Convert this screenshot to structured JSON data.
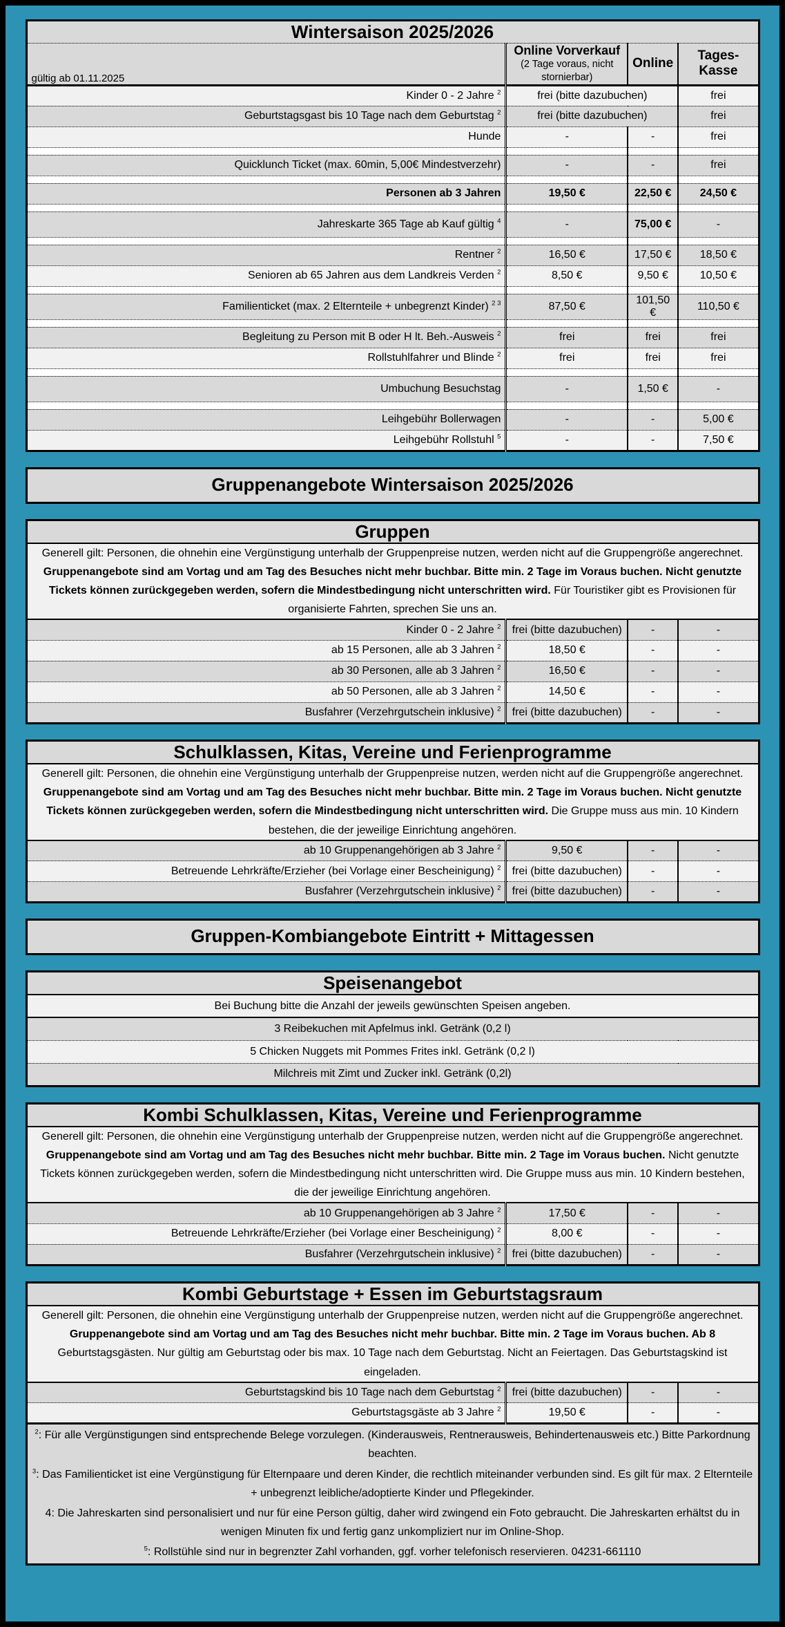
{
  "page": {
    "background_color": "#2d93b4",
    "row_dark_color": "#d9d9d9",
    "row_light_color": "#f1f1f1"
  },
  "sections": [
    {
      "type": "price_table",
      "name": "wintersaison",
      "title": "Wintersaison 2025/2026",
      "corner_note": "gültig ab 01.11.2025",
      "headers": {
        "vorverkauf_title": "Online Vorverkauf",
        "vorverkauf_sub": "(2 Tage voraus, nicht stornierbar)",
        "online": "Online",
        "kasse": "Tages-Kasse"
      },
      "rows": [
        {
          "label": "Kinder 0 - 2 Jahre",
          "sup": "2",
          "shade": "light",
          "cells": [
            {
              "text": "frei (bitte dazubuchen)",
              "span": 2
            },
            {
              "text": "frei"
            }
          ]
        },
        {
          "label": "Geburtstagsgast bis 10 Tage nach dem Geburtstag",
          "sup": "2",
          "shade": "dark",
          "cells": [
            {
              "text": "frei (bitte dazubuchen)",
              "span": 2
            },
            {
              "text": "frei"
            }
          ]
        },
        {
          "label": "Hunde",
          "shade": "light",
          "cells": [
            {
              "text": "-"
            },
            {
              "text": "-"
            },
            {
              "text": "frei"
            }
          ]
        },
        {
          "spacer": true
        },
        {
          "label": "Quicklunch Ticket (max. 60min, 5,00€ Mindestverzehr)",
          "shade": "dark",
          "cells": [
            {
              "text": "-"
            },
            {
              "text": "-"
            },
            {
              "text": "frei"
            }
          ]
        },
        {
          "spacer": true
        },
        {
          "label": "Personen ab 3 Jahren",
          "label_bold": true,
          "shade": "dark",
          "cells": [
            {
              "text": "19,50 €",
              "bold": true
            },
            {
              "text": "22,50 €",
              "bold": true
            },
            {
              "text": "24,50 €",
              "bold": true
            }
          ]
        },
        {
          "spacer": true
        },
        {
          "label": "Jahreskarte 365 Tage ab Kauf gültig",
          "sup": "4",
          "tall": true,
          "shade": "dark",
          "cells": [
            {
              "text": "-"
            },
            {
              "text": "75,00 €",
              "bold": true
            },
            {
              "text": "-"
            }
          ]
        },
        {
          "spacer": true
        },
        {
          "label": "Rentner",
          "sup": "2",
          "shade": "dark",
          "cells": [
            {
              "text": "16,50 €"
            },
            {
              "text": "17,50 €"
            },
            {
              "text": "18,50 €"
            }
          ]
        },
        {
          "label": "Senioren ab 65 Jahren aus dem Landkreis Verden",
          "sup": "2",
          "shade": "light",
          "cells": [
            {
              "text": "8,50 €"
            },
            {
              "text": "9,50 €"
            },
            {
              "text": "10,50 €"
            }
          ]
        },
        {
          "spacer": true
        },
        {
          "label": "Familienticket (max. 2 Elternteile + unbegrenzt Kinder)",
          "sup": "2 3",
          "tall": true,
          "shade": "dark",
          "cells": [
            {
              "text": "87,50 €"
            },
            {
              "text": "101,50 €"
            },
            {
              "text": "110,50 €"
            }
          ]
        },
        {
          "spacer": true
        },
        {
          "label": "Begleitung zu Person mit B oder H lt. Beh.-Ausweis",
          "sup": "2",
          "shade": "dark",
          "cells": [
            {
              "text": "frei"
            },
            {
              "text": "frei"
            },
            {
              "text": "frei"
            }
          ]
        },
        {
          "label": "Rollstuhlfahrer und Blinde",
          "sup": "2",
          "shade": "light",
          "cells": [
            {
              "text": "frei"
            },
            {
              "text": "frei"
            },
            {
              "text": "frei"
            }
          ]
        },
        {
          "spacer": true
        },
        {
          "label": "Umbuchung Besuchstag",
          "tall": true,
          "shade": "dark",
          "cells": [
            {
              "text": "-"
            },
            {
              "text": "1,50 €"
            },
            {
              "text": "-"
            }
          ]
        },
        {
          "spacer": true
        },
        {
          "label": "Leihgebühr Bollerwagen",
          "shade": "dark",
          "cells": [
            {
              "text": "-"
            },
            {
              "text": "-"
            },
            {
              "text": "5,00 €"
            }
          ]
        },
        {
          "label": "Leihgebühr Rollstuhl",
          "sup": "5",
          "shade": "light",
          "cells": [
            {
              "text": "-"
            },
            {
              "text": "-"
            },
            {
              "text": "7,50 €"
            }
          ]
        }
      ]
    },
    {
      "type": "banner",
      "name": "gruppenangebote-header",
      "title": "Gruppenangebote Wintersaison 2025/2026"
    },
    {
      "type": "group_table",
      "name": "gruppen",
      "title": "Gruppen",
      "description": [
        {
          "text": "Generell gilt: Personen, die ohnehin eine Vergünstigung unterhalb der Gruppenpreise nutzen, werden nicht auf die Gruppengröße angerechnet. ",
          "bold": false
        },
        {
          "text": "Gruppenangebote sind am Vortag und am Tag des Besuches nicht mehr buchbar. Bitte min. 2 Tage im Voraus buchen. Nicht genutzte Tickets können zurückgegeben werden, sofern die Mindestbedingung nicht unterschritten wird.",
          "bold": true
        },
        {
          "text": " Für Touristiker gibt es Provisionen für organisierte Fahrten, sprechen Sie uns an.",
          "bold": false
        }
      ],
      "rows": [
        {
          "label": "Kinder 0 - 2 Jahre",
          "sup": "2",
          "shade": "dark",
          "cells": [
            {
              "text": "frei (bitte dazubuchen)"
            },
            {
              "text": "-"
            },
            {
              "text": "-"
            }
          ]
        },
        {
          "label": "ab 15 Personen, alle ab 3 Jahren",
          "sup": "2",
          "shade": "light",
          "cells": [
            {
              "text": "18,50 €"
            },
            {
              "text": "-"
            },
            {
              "text": "-"
            }
          ]
        },
        {
          "label": "ab 30 Personen, alle ab 3 Jahren",
          "sup": "2",
          "shade": "dark",
          "cells": [
            {
              "text": "16,50 €"
            },
            {
              "text": "-"
            },
            {
              "text": "-"
            }
          ]
        },
        {
          "label": "ab 50 Personen, alle ab 3 Jahren",
          "sup": "2",
          "shade": "light",
          "cells": [
            {
              "text": "14,50 €"
            },
            {
              "text": "-"
            },
            {
              "text": "-"
            }
          ]
        },
        {
          "label": "Busfahrer (Verzehrgutschein inklusive)",
          "sup": "2",
          "shade": "dark",
          "cells": [
            {
              "text": "frei (bitte dazubuchen)"
            },
            {
              "text": "-"
            },
            {
              "text": "-"
            }
          ]
        }
      ]
    },
    {
      "type": "group_table",
      "name": "schulklassen",
      "title": "Schulklassen, Kitas, Vereine und Ferienprogramme",
      "description": [
        {
          "text": "Generell gilt: Personen, die ohnehin eine Vergünstigung unterhalb der Gruppenpreise nutzen, werden nicht auf die Gruppengröße angerechnet. ",
          "bold": false
        },
        {
          "text": "Gruppenangebote sind am Vortag und am Tag des Besuches nicht mehr buchbar. Bitte min. 2 Tage im Voraus buchen. Nicht genutzte Tickets können zurückgegeben werden, sofern die Mindestbedingung nicht unterschritten wird.",
          "bold": true
        },
        {
          "text": "  Die Gruppe muss aus min. 10 Kindern bestehen, die der jeweilige Einrichtung angehören.",
          "bold": false
        }
      ],
      "rows": [
        {
          "label": "ab 10 Gruppenangehörigen ab 3 Jahre",
          "sup": "2",
          "shade": "dark",
          "cells": [
            {
              "text": "9,50 €"
            },
            {
              "text": "-"
            },
            {
              "text": "-"
            }
          ]
        },
        {
          "label": "Betreuende Lehrkräfte/Erzieher (bei Vorlage einer Bescheinigung)",
          "sup": "2",
          "shade": "light",
          "cells": [
            {
              "text": "frei (bitte dazubuchen)"
            },
            {
              "text": "-"
            },
            {
              "text": "-"
            }
          ]
        },
        {
          "label": "Busfahrer (Verzehrgutschein inklusive)",
          "sup": "2",
          "shade": "dark",
          "cells": [
            {
              "text": "frei (bitte dazubuchen)"
            },
            {
              "text": "-"
            },
            {
              "text": "-"
            }
          ]
        }
      ]
    },
    {
      "type": "banner",
      "name": "kombi-header",
      "title": "Gruppen-Kombiangebote Eintritt + Mittagessen"
    },
    {
      "type": "menu_table",
      "name": "speisenangebot",
      "title": "Speisenangebot",
      "rows": [
        {
          "text": "Bei Buchung bitte die Anzahl der jeweils gewünschten Speisen angeben.",
          "shade": "light",
          "solid_after": true
        },
        {
          "text": "3 Reibekuchen mit Apfelmus inkl.  Getränk (0,2 l)",
          "shade": "dark"
        },
        {
          "text": "5 Chicken Nuggets mit Pommes Frites inkl.  Getränk (0,2 l)",
          "shade": "light"
        },
        {
          "text": "Milchreis mit Zimt und Zucker inkl. Getränk (0,2l)",
          "shade": "dark"
        }
      ]
    },
    {
      "type": "group_table",
      "name": "kombi-schulklassen",
      "title": "Kombi Schulklassen, Kitas, Vereine und Ferienprogramme",
      "description": [
        {
          "text": "Generell gilt: Personen, die ohnehin eine Vergünstigung unterhalb der Gruppenpreise nutzen, werden nicht auf die Gruppengröße angerechnet. ",
          "bold": false
        },
        {
          "text": "Gruppenangebote sind am Vortag und am Tag des Besuches nicht mehr buchbar. Bitte min. 2 Tage im Voraus buchen.",
          "bold": true
        },
        {
          "text": "  Nicht genutzte Tickets können zurückgegeben werden, sofern die Mindestbedingung nicht unterschritten wird. Die Gruppe muss aus min. 10 Kindern bestehen, die der jeweilige Einrichtung angehören.",
          "bold": false
        }
      ],
      "rows": [
        {
          "label": "ab 10 Gruppenangehörigen ab 3 Jahre",
          "sup": "2",
          "shade": "dark",
          "cells": [
            {
              "text": "17,50 €"
            },
            {
              "text": "-"
            },
            {
              "text": "-"
            }
          ]
        },
        {
          "label": "Betreuende Lehrkräfte/Erzieher (bei Vorlage einer Bescheinigung)",
          "sup": "2",
          "shade": "light",
          "cells": [
            {
              "text": "8,00 €"
            },
            {
              "text": "-"
            },
            {
              "text": "-"
            }
          ]
        },
        {
          "label": "Busfahrer (Verzehrgutschein inklusive)",
          "sup": "2",
          "shade": "dark",
          "cells": [
            {
              "text": "frei (bitte dazubuchen)"
            },
            {
              "text": "-"
            },
            {
              "text": "-"
            }
          ]
        }
      ]
    },
    {
      "type": "group_table",
      "name": "kombi-geburtstage",
      "title": "Kombi Geburtstage + Essen im Geburtstagsraum",
      "description": [
        {
          "text": "Generell gilt: Personen, die ohnehin eine Vergünstigung unterhalb der Gruppenpreise nutzen, werden nicht auf die Gruppengröße angerechnet. ",
          "bold": false
        },
        {
          "text": "Gruppenangebote sind am Vortag und am Tag des Besuches nicht mehr buchbar. Bitte min. 2 Tage im Voraus buchen. Ab 8",
          "bold": true
        },
        {
          "text": " Geburtstagsgästen. Nur gültig am Geburtstag oder bis max. 10 Tage nach dem Geburtstag. Nicht an Feiertagen. Das Geburtstagskind ist eingeladen.",
          "bold": false
        }
      ],
      "rows": [
        {
          "label": "Geburtstagskind bis 10 Tage nach dem Geburtstag",
          "sup": "2",
          "shade": "dark",
          "cells": [
            {
              "text": "frei (bitte dazubuchen)"
            },
            {
              "text": "-"
            },
            {
              "text": "-"
            }
          ]
        },
        {
          "label": "Geburtstagsgäste ab 3 Jahre",
          "sup": "2",
          "shade": "light",
          "cells": [
            {
              "text": "19,50 €"
            },
            {
              "text": "-"
            },
            {
              "text": "-"
            }
          ]
        }
      ],
      "footnotes": [
        {
          "marker": "2",
          "sup": true,
          "sep": ": ",
          "text": "Für alle Vergünstigungen sind entsprechende Belege vorzulegen. (Kinderausweis, Rentnerausweis, Behindertenausweis etc.) Bitte Parkordnung beachten."
        },
        {
          "marker": "3",
          "sup": true,
          "sep": ": ",
          "text": "Das Familienticket ist eine Vergünstigung für Elternpaare und deren Kinder, die rechtlich miteinander verbunden sind. Es gilt für max. 2 Elternteile + unbegrenzt leibliche/adoptierte Kinder und Pflegekinder."
        },
        {
          "marker": "4",
          "sup": false,
          "sep": ": ",
          "text": "Die Jahreskarten sind personalisiert und nur für eine Person gültig, daher wird zwingend ein Foto gebraucht. Die Jahreskarten erhältst du in wenigen Minuten fix und fertig ganz unkompliziert nur im Online-Shop."
        },
        {
          "marker": "5",
          "sup": true,
          "sep": ": ",
          "text": "Rollstühle sind nur in begrenzter Zahl vorhanden, ggf. vorher telefonisch reservieren. 04231-661110"
        }
      ]
    }
  ]
}
